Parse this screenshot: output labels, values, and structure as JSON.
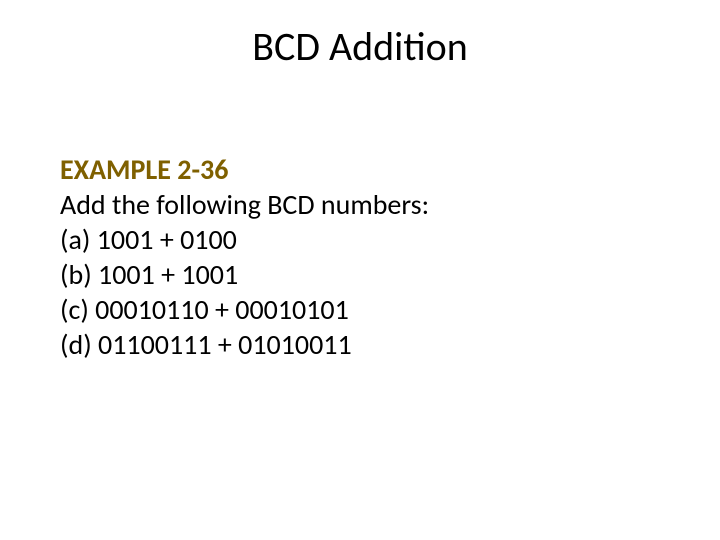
{
  "slide": {
    "title": "BCD Addition",
    "example_label": "EXAMPLE 2-36",
    "intro": "Add the following BCD numbers:",
    "items": {
      "a": "(a) 1001 + 0100",
      "b": "(b) 1001 + 1001",
      "c": "(c) 00010110 + 00010101",
      "d": "(d) 01100111 + 01010011"
    }
  },
  "style": {
    "title_color": "#000000",
    "title_fontsize": 40,
    "body_fontsize": 28,
    "example_label_color": "#7f6000",
    "background_color": "#ffffff",
    "font_family": "Calibri"
  }
}
